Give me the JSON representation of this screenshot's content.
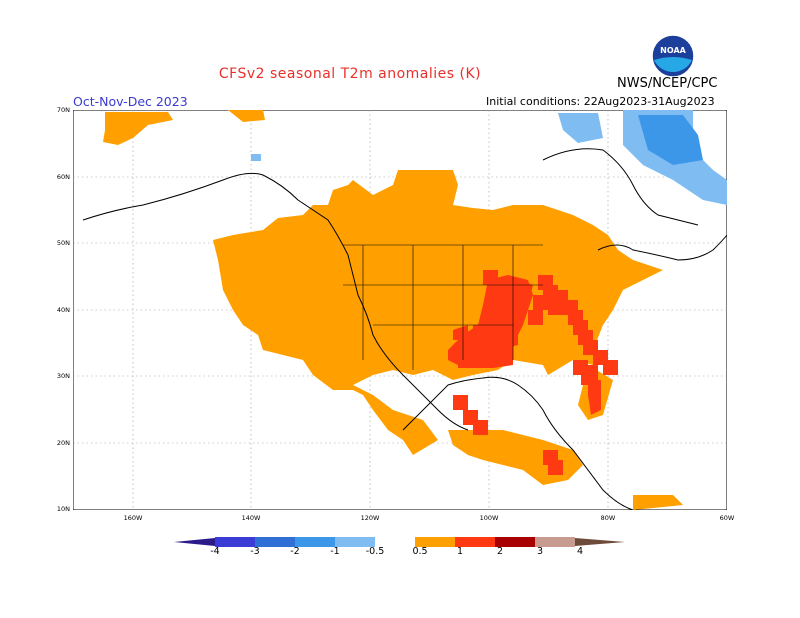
{
  "header": {
    "title": "CFSv2 seasonal T2m anomalies (K)",
    "period": "Oct-Nov-Dec 2023",
    "initial_conditions": "Initial conditions: 22Aug2023-31Aug2023",
    "agency": "NWS/NCEP/CPC",
    "logo_text": "NOAA"
  },
  "map": {
    "latitude_labels": [
      "70N",
      "60N",
      "50N",
      "40N",
      "30N",
      "20N",
      "10N"
    ],
    "longitude_labels": [
      "160W",
      "140W",
      "120W",
      "100W",
      "80W",
      "60W"
    ],
    "region": "North America",
    "projection": "lat-lon"
  },
  "colorbar": {
    "labels": [
      "-4",
      "-3",
      "-2",
      "-1",
      "-0.5",
      "0.5",
      "1",
      "2",
      "3",
      "4"
    ],
    "colors": [
      "#2a1a8a",
      "#3b3bd6",
      "#2f6fd6",
      "#3d97e8",
      "#7fbcf2",
      "#ffffff",
      "#ffa000",
      "#ff3a12",
      "#a80000",
      "#c79b8f",
      "#6e4a3a"
    ]
  },
  "legend_colors": {
    "warm_0_5_1": "#ffa000",
    "warm_1_2": "#ff3a12",
    "cold_minus1_minus0_5": "#7fbcf2",
    "cold_minus2_minus1": "#3d97e8"
  }
}
